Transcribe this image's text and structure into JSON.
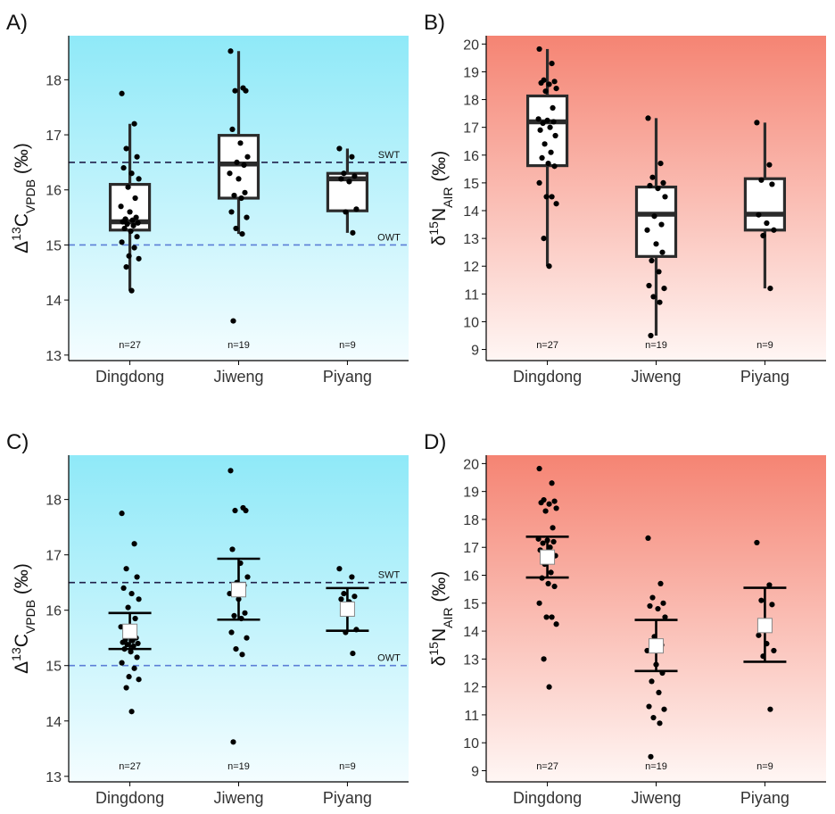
{
  "figure": {
    "ref_line_colors": {
      "swt": "#1f1f4a",
      "owt": "#5b7fd6"
    },
    "gradients": {
      "carbon": {
        "top": "#8fe9f8",
        "bottom": "#f4fdff"
      },
      "nitrogen": {
        "top": "#f58473",
        "bottom": "#fff6f4"
      }
    }
  },
  "chart_data": [
    {
      "panel_label": "A)",
      "type": "box",
      "theme": "carbon",
      "ylabel": {
        "prefix": "Δ",
        "sup": "13",
        "base": "C",
        "sub": "VPDB",
        "suffix": " (‰)"
      },
      "categories": [
        "Dingdong",
        "Jiweng",
        "Piyang"
      ],
      "ylim": [
        12.9,
        18.8
      ],
      "yticks": [
        13,
        14,
        15,
        16,
        17,
        18
      ],
      "annotations": {
        "counts": [
          "n=27",
          "n=19",
          "n=9"
        ]
      },
      "ref_lines": [
        {
          "label": "SWT",
          "y": 16.5,
          "color": "#1f1f4a"
        },
        {
          "label": "OWT",
          "y": 15.0,
          "color": "#5b7fd6"
        }
      ],
      "boxes": [
        {
          "lw": 14.17,
          "q1": 15.27,
          "median": 15.42,
          "q3": 16.1,
          "uw": 17.2
        },
        {
          "lw": 15.2,
          "q1": 15.85,
          "median": 16.47,
          "q3": 16.99,
          "uw": 18.52
        },
        {
          "lw": 15.22,
          "q1": 15.62,
          "median": 16.2,
          "q3": 16.3,
          "uw": 16.75
        }
      ],
      "points": [
        [
          17.75,
          17.2,
          16.75,
          16.6,
          16.4,
          16.3,
          16.2,
          16.05,
          15.85,
          15.7,
          15.6,
          15.5,
          15.47,
          15.45,
          15.42,
          15.4,
          15.38,
          15.35,
          15.3,
          15.25,
          15.15,
          15.05,
          14.95,
          14.8,
          14.75,
          14.6,
          14.17
        ],
        [
          18.52,
          17.85,
          17.8,
          17.8,
          17.1,
          16.85,
          16.6,
          16.5,
          16.45,
          16.3,
          16.2,
          15.95,
          15.9,
          15.85,
          15.6,
          15.5,
          15.3,
          15.2,
          13.62
        ],
        [
          16.75,
          16.6,
          16.3,
          16.25,
          16.2,
          16.15,
          15.65,
          15.6,
          15.22
        ]
      ]
    },
    {
      "panel_label": "B)",
      "type": "box",
      "theme": "nitrogen",
      "ylabel": {
        "prefix": "δ",
        "sup": "15",
        "base": "N",
        "sub": "AIR",
        "suffix": " (‰)"
      },
      "categories": [
        "Dingdong",
        "Jiweng",
        "Piyang"
      ],
      "ylim": [
        8.6,
        20.3
      ],
      "yticks": [
        9,
        10,
        11,
        12,
        13,
        14,
        15,
        16,
        17,
        18,
        19,
        20
      ],
      "annotations": {
        "counts": [
          "n=27",
          "n=19",
          "n=9"
        ]
      },
      "ref_lines": [],
      "boxes": [
        {
          "lw": 12.0,
          "q1": 15.62,
          "median": 17.2,
          "q3": 18.13,
          "uw": 19.82
        },
        {
          "lw": 9.5,
          "q1": 12.35,
          "median": 13.87,
          "q3": 14.85,
          "uw": 17.33
        },
        {
          "lw": 11.2,
          "q1": 13.3,
          "median": 13.87,
          "q3": 15.15,
          "uw": 17.17
        }
      ],
      "points": [
        [
          19.82,
          19.3,
          18.7,
          18.65,
          18.6,
          18.55,
          18.4,
          18.3,
          17.7,
          17.3,
          17.25,
          17.2,
          17.15,
          17.0,
          16.9,
          16.7,
          16.4,
          16.1,
          15.9,
          15.7,
          15.6,
          15.0,
          14.5,
          14.5,
          14.25,
          13.0,
          12.0
        ],
        [
          17.33,
          15.7,
          15.2,
          15.0,
          14.9,
          14.8,
          14.5,
          13.8,
          13.5,
          13.3,
          12.8,
          12.5,
          12.2,
          11.8,
          11.3,
          11.2,
          10.9,
          10.7,
          9.5
        ],
        [
          17.17,
          15.65,
          15.1,
          14.95,
          13.85,
          13.55,
          13.3,
          13.1,
          11.2
        ]
      ]
    },
    {
      "panel_label": "C)",
      "type": "errorbar",
      "theme": "carbon",
      "ylabel": {
        "prefix": "Δ",
        "sup": "13",
        "base": "C",
        "sub": "VPDB",
        "suffix": " (‰)"
      },
      "categories": [
        "Dingdong",
        "Jiweng",
        "Piyang"
      ],
      "ylim": [
        12.9,
        18.8
      ],
      "yticks": [
        13,
        14,
        15,
        16,
        17,
        18
      ],
      "annotations": {
        "counts": [
          "n=27",
          "n=19",
          "n=9"
        ]
      },
      "ref_lines": [
        {
          "label": "SWT",
          "y": 16.5,
          "color": "#1f1f4a"
        },
        {
          "label": "OWT",
          "y": 15.0,
          "color": "#5b7fd6"
        }
      ],
      "summary": [
        {
          "mean": 15.62,
          "lower": 15.3,
          "upper": 15.95
        },
        {
          "mean": 16.37,
          "lower": 15.83,
          "upper": 16.93
        },
        {
          "mean": 16.02,
          "lower": 15.63,
          "upper": 16.4
        }
      ],
      "points": [
        [
          17.75,
          17.2,
          16.75,
          16.6,
          16.4,
          16.3,
          16.2,
          16.05,
          15.85,
          15.7,
          15.6,
          15.5,
          15.47,
          15.45,
          15.42,
          15.4,
          15.38,
          15.35,
          15.3,
          15.25,
          15.15,
          15.05,
          14.95,
          14.8,
          14.75,
          14.6,
          14.17
        ],
        [
          18.52,
          17.85,
          17.8,
          17.8,
          17.1,
          16.85,
          16.6,
          16.5,
          16.45,
          16.3,
          16.2,
          15.95,
          15.9,
          15.85,
          15.6,
          15.5,
          15.3,
          15.2,
          13.62
        ],
        [
          16.75,
          16.6,
          16.3,
          16.25,
          16.2,
          16.15,
          15.65,
          15.6,
          15.22
        ]
      ]
    },
    {
      "panel_label": "D)",
      "type": "errorbar",
      "theme": "nitrogen",
      "ylabel": {
        "prefix": "δ",
        "sup": "15",
        "base": "N",
        "sub": "AIR",
        "suffix": " (‰)"
      },
      "categories": [
        "Dingdong",
        "Jiweng",
        "Piyang"
      ],
      "ylim": [
        8.6,
        20.3
      ],
      "yticks": [
        9,
        10,
        11,
        12,
        13,
        14,
        15,
        16,
        17,
        18,
        19,
        20
      ],
      "annotations": {
        "counts": [
          "n=27",
          "n=19",
          "n=9"
        ]
      },
      "ref_lines": [],
      "summary": [
        {
          "mean": 16.65,
          "lower": 15.92,
          "upper": 17.38
        },
        {
          "mean": 13.47,
          "lower": 12.57,
          "upper": 14.4
        },
        {
          "mean": 14.2,
          "lower": 12.9,
          "upper": 15.55
        }
      ],
      "points": [
        [
          19.82,
          19.3,
          18.7,
          18.65,
          18.6,
          18.55,
          18.4,
          18.3,
          17.7,
          17.3,
          17.25,
          17.2,
          17.15,
          17.0,
          16.9,
          16.7,
          16.4,
          16.1,
          15.9,
          15.7,
          15.6,
          15.0,
          14.5,
          14.5,
          14.25,
          13.0,
          12.0
        ],
        [
          17.33,
          15.7,
          15.2,
          15.0,
          14.9,
          14.8,
          14.5,
          13.8,
          13.5,
          13.3,
          12.8,
          12.5,
          12.2,
          11.8,
          11.3,
          11.2,
          10.9,
          10.7,
          9.5
        ],
        [
          17.17,
          15.65,
          15.1,
          14.95,
          13.85,
          13.55,
          13.3,
          13.1,
          11.2
        ]
      ]
    }
  ]
}
